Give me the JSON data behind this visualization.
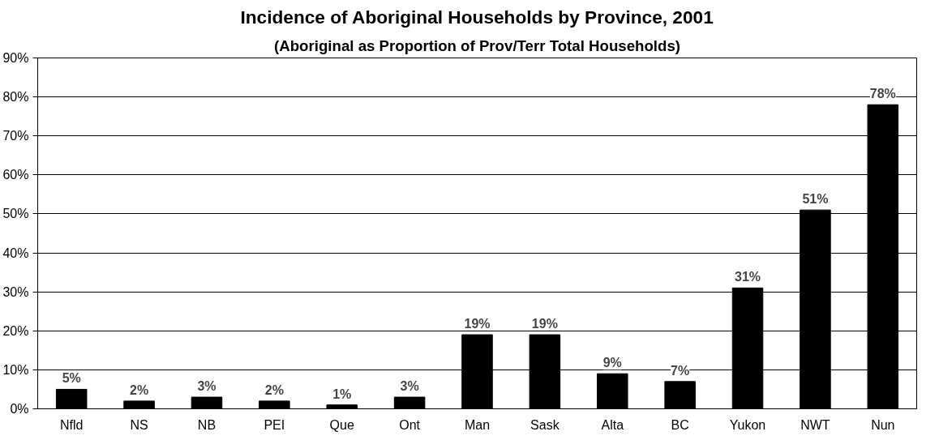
{
  "chart_data": {
    "type": "bar",
    "title": "Incidence of Aboriginal Households by Province, 2001",
    "subtitle": "(Aboriginal as Proportion of Prov/Terr Total Households)",
    "categories": [
      "Nfld",
      "NS",
      "NB",
      "PEI",
      "Que",
      "Ont",
      "Man",
      "Sask",
      "Alta",
      "BC",
      "Yukon",
      "NWT",
      "Nun"
    ],
    "values": [
      5,
      2,
      3,
      2,
      1,
      3,
      19,
      19,
      9,
      7,
      31,
      51,
      78
    ],
    "value_labels": [
      "5%",
      "2%",
      "3%",
      "2%",
      "1%",
      "3%",
      "19%",
      "19%",
      "9%",
      "7%",
      "31%",
      "51%",
      "78%"
    ],
    "color": "#000000",
    "ylim": [
      0,
      90
    ],
    "yticks": [
      {
        "value": 0,
        "label": "0%"
      },
      {
        "value": 10,
        "label": "10%"
      },
      {
        "value": 20,
        "label": "20%"
      },
      {
        "value": 30,
        "label": "30%"
      },
      {
        "value": 40,
        "label": "40%"
      },
      {
        "value": 50,
        "label": "50%"
      },
      {
        "value": 60,
        "label": "60%"
      },
      {
        "value": 70,
        "label": "70%"
      },
      {
        "value": 80,
        "label": "80%"
      },
      {
        "value": 90,
        "label": "90%"
      }
    ],
    "grid": "y"
  }
}
